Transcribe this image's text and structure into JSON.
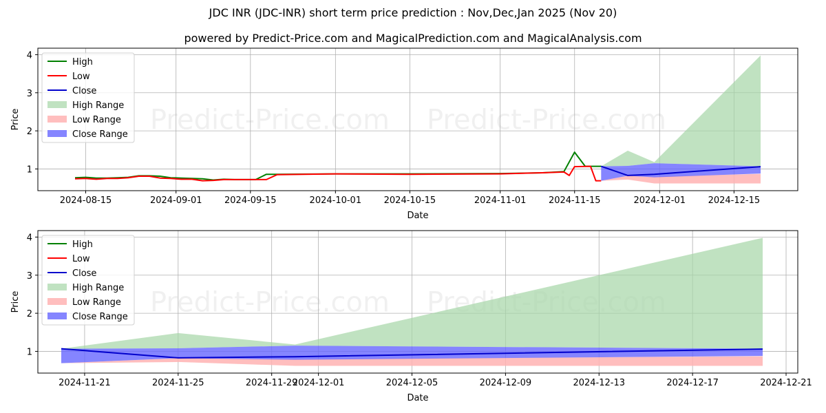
{
  "header": {
    "title": "JDC INR (JDC-INR) short term price prediction : Nov,Dec,Jan 2025 (Nov 20)",
    "subtitle": "powered by Predict-Price.com and MagicalPrediction.com and MagicalAnalysis.com"
  },
  "watermark": "Predict-Price.com",
  "colors": {
    "high": "#008000",
    "low": "#ff0000",
    "close": "#0000cc",
    "high_range": "#a5d6a7",
    "low_range": "#ffb3b3",
    "close_range": "#6666ff",
    "grid": "#b0b0b0"
  },
  "legend": [
    {
      "label": "High",
      "type": "line",
      "key": "high"
    },
    {
      "label": "Low",
      "type": "line",
      "key": "low"
    },
    {
      "label": "Close",
      "type": "line",
      "key": "close"
    },
    {
      "label": "High Range",
      "type": "patch",
      "key": "high_range"
    },
    {
      "label": "Low Range",
      "type": "patch",
      "key": "low_range"
    },
    {
      "label": "Close Range",
      "type": "patch",
      "key": "close_range"
    }
  ],
  "chart_data": [
    {
      "type": "line",
      "title": "JDC INR (JDC-INR) short term price prediction : Nov,Dec,Jan 2025 (Nov 20)",
      "xlabel": "Date",
      "ylabel": "Price",
      "xlim": [
        "2024-08-06",
        "2024-12-27"
      ],
      "ylim": [
        0.43,
        4.17
      ],
      "yticks": [
        1,
        2,
        3,
        4
      ],
      "xticks": [
        "2024-08-15",
        "2024-09-01",
        "2024-09-15",
        "2024-10-01",
        "2024-10-15",
        "2024-11-01",
        "2024-11-15",
        "2024-12-01",
        "2024-12-15"
      ],
      "grid": true,
      "legend_position": "upper left",
      "series": [
        {
          "name": "High",
          "x": [
            "2024-08-13",
            "2024-08-15",
            "2024-08-17",
            "2024-08-19",
            "2024-08-21",
            "2024-08-23",
            "2024-08-25",
            "2024-08-27",
            "2024-08-29",
            "2024-08-31",
            "2024-09-02",
            "2024-09-04",
            "2024-09-06",
            "2024-09-08",
            "2024-09-10",
            "2024-09-12",
            "2024-09-14",
            "2024-09-16",
            "2024-09-18",
            "2024-09-20",
            "2024-10-01",
            "2024-10-15",
            "2024-11-01",
            "2024-11-09",
            "2024-11-13",
            "2024-11-15",
            "2024-11-17",
            "2024-11-20"
          ],
          "values": [
            0.77,
            0.78,
            0.76,
            0.76,
            0.77,
            0.78,
            0.82,
            0.82,
            0.81,
            0.77,
            0.76,
            0.75,
            0.74,
            0.71,
            0.73,
            0.72,
            0.72,
            0.72,
            0.86,
            0.86,
            0.87,
            0.87,
            0.88,
            0.9,
            0.93,
            1.44,
            1.07,
            1.07
          ]
        },
        {
          "name": "Low",
          "x": [
            "2024-08-13",
            "2024-08-15",
            "2024-08-17",
            "2024-08-19",
            "2024-08-21",
            "2024-08-23",
            "2024-08-25",
            "2024-08-27",
            "2024-08-29",
            "2024-08-31",
            "2024-09-02",
            "2024-09-04",
            "2024-09-06",
            "2024-09-08",
            "2024-09-10",
            "2024-09-12",
            "2024-09-14",
            "2024-09-16",
            "2024-09-18",
            "2024-09-20",
            "2024-10-01",
            "2024-10-15",
            "2024-11-01",
            "2024-11-09",
            "2024-11-13",
            "2024-11-14",
            "2024-11-15",
            "2024-11-18",
            "2024-11-19",
            "2024-11-20"
          ],
          "values": [
            0.74,
            0.75,
            0.73,
            0.75,
            0.75,
            0.77,
            0.81,
            0.81,
            0.76,
            0.75,
            0.73,
            0.73,
            0.69,
            0.7,
            0.72,
            0.72,
            0.72,
            0.72,
            0.72,
            0.85,
            0.87,
            0.86,
            0.87,
            0.9,
            0.92,
            0.83,
            1.06,
            1.07,
            0.69,
            0.69
          ]
        },
        {
          "name": "Close",
          "x": [
            "2024-11-20",
            "2024-11-25",
            "2024-11-30",
            "2024-12-20"
          ],
          "values": [
            1.07,
            0.83,
            0.86,
            1.06
          ]
        },
        {
          "name": "High Range",
          "type": "area",
          "x": [
            "2024-11-20",
            "2024-11-25",
            "2024-11-30",
            "2024-12-20"
          ],
          "upper": [
            1.07,
            1.48,
            1.18,
            3.98
          ],
          "lower": [
            1.07,
            1.08,
            1.15,
            1.07
          ]
        },
        {
          "name": "Low Range",
          "type": "area",
          "x": [
            "2024-11-20",
            "2024-11-25",
            "2024-11-30",
            "2024-12-20"
          ],
          "upper": [
            0.69,
            0.82,
            0.8,
            0.87
          ],
          "lower": [
            0.69,
            0.72,
            0.62,
            0.62
          ]
        },
        {
          "name": "Close Range",
          "type": "area",
          "x": [
            "2024-11-20",
            "2024-11-25",
            "2024-11-30",
            "2024-12-20"
          ],
          "upper": [
            1.07,
            1.08,
            1.15,
            1.07
          ],
          "lower": [
            0.69,
            0.82,
            0.78,
            0.88
          ]
        }
      ]
    },
    {
      "type": "line",
      "title": "",
      "xlabel": "Date",
      "ylabel": "Price",
      "xlim": [
        "2024-11-19",
        "2024-12-21.5"
      ],
      "ylim": [
        0.43,
        4.17
      ],
      "yticks": [
        1,
        2,
        3,
        4
      ],
      "xticks": [
        "2024-11-21",
        "2024-11-25",
        "2024-11-29",
        "2024-12-01",
        "2024-12-05",
        "2024-12-09",
        "2024-12-13",
        "2024-12-17",
        "2024-12-21"
      ],
      "grid": true,
      "legend_position": "upper left",
      "series": [
        {
          "name": "Close",
          "x": [
            "2024-11-20",
            "2024-11-25",
            "2024-11-30",
            "2024-12-20"
          ],
          "values": [
            1.07,
            0.83,
            0.86,
            1.06
          ]
        },
        {
          "name": "High Range",
          "type": "area",
          "x": [
            "2024-11-20",
            "2024-11-25",
            "2024-11-30",
            "2024-12-20"
          ],
          "upper": [
            1.07,
            1.48,
            1.18,
            3.98
          ],
          "lower": [
            1.07,
            1.08,
            1.15,
            1.07
          ]
        },
        {
          "name": "Low Range",
          "type": "area",
          "x": [
            "2024-11-20",
            "2024-11-25",
            "2024-11-30",
            "2024-12-20"
          ],
          "upper": [
            0.69,
            0.82,
            0.8,
            0.87
          ],
          "lower": [
            0.69,
            0.72,
            0.62,
            0.62
          ]
        },
        {
          "name": "Close Range",
          "type": "area",
          "x": [
            "2024-11-20",
            "2024-11-25",
            "2024-11-30",
            "2024-12-20"
          ],
          "upper": [
            1.07,
            1.08,
            1.15,
            1.07
          ],
          "lower": [
            0.69,
            0.82,
            0.78,
            0.88
          ]
        }
      ]
    }
  ]
}
